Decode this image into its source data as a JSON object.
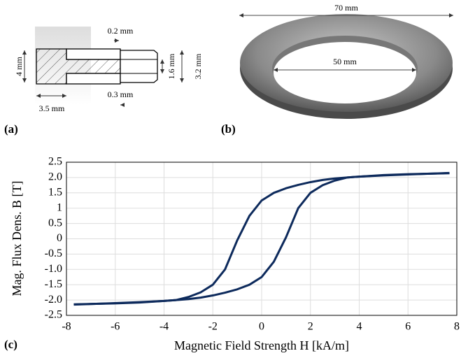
{
  "figure": {
    "panels": [
      {
        "label": "(a)",
        "dimensions": [
          "0.2 mm",
          "4 mm",
          "1.6 mm",
          "3.2 mm",
          "0.3 mm",
          "3.5 mm"
        ]
      },
      {
        "label": "(b)",
        "dimensions": [
          "70 mm",
          "50 mm"
        ]
      },
      {
        "label": "(c)"
      }
    ]
  },
  "chart_data": {
    "type": "line",
    "x_label": "Magnetic Field Strength H [kA/m]",
    "y_label": "Mag. Flux Dens. B [T]",
    "x": [
      -7.7,
      -6,
      -5,
      -4,
      -3.5,
      -3,
      -2.5,
      -2,
      -1.5,
      -1,
      -0.5,
      0,
      0.5,
      1,
      1.5,
      2,
      2.5,
      3,
      3.5,
      4,
      5,
      6,
      7.7
    ],
    "series": [
      {
        "color": "#0d2a5c",
        "values": [
          -2.14,
          -2.11,
          -2.08,
          -2.03,
          -2.0,
          -1.9,
          -1.75,
          -1.5,
          -1.0,
          -0.05,
          0.75,
          1.25,
          1.5,
          1.65,
          1.76,
          1.85,
          1.92,
          1.97,
          2.0,
          2.03,
          2.07,
          2.1,
          2.15
        ]
      },
      {
        "color": "#0d2a5c",
        "values": [
          -2.15,
          -2.1,
          -2.07,
          -2.03,
          -2.0,
          -1.97,
          -1.92,
          -1.85,
          -1.76,
          -1.65,
          -1.5,
          -1.25,
          -0.75,
          0.05,
          1.0,
          1.5,
          1.75,
          1.9,
          2.0,
          2.03,
          2.08,
          2.11,
          2.14
        ]
      }
    ],
    "xlim": [
      -8,
      8
    ],
    "xticks": [
      -8,
      -6,
      -4,
      -2,
      0,
      2,
      4,
      6,
      8
    ],
    "ylim": [
      -2.5,
      2.5
    ],
    "yticks": [
      -2.5,
      {
        "value": -2,
        "label": "-2.0"
      },
      -1.5,
      {
        "value": -1,
        "label": "-1.0"
      },
      -0.5,
      0,
      0.5,
      1,
      1.5,
      {
        "value": 2,
        "label": "2.0"
      },
      2.5
    ],
    "grid": true
  }
}
